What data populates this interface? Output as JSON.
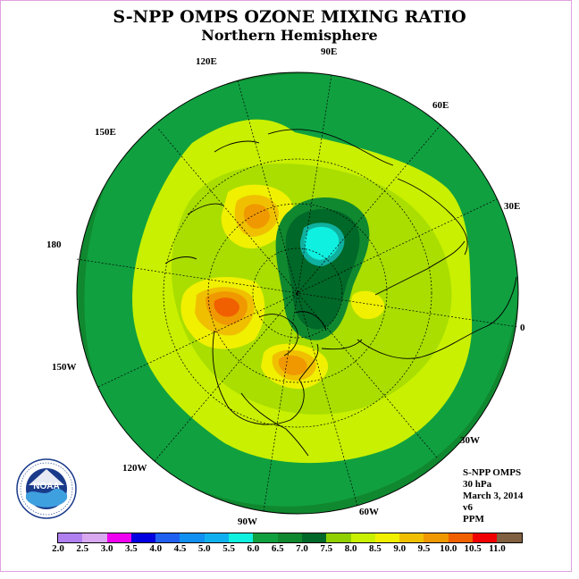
{
  "title": "S-NPP OMPS OZONE MIXING RATIO",
  "subtitle": "Northern Hemisphere",
  "longitude_labels": [
    {
      "text": "90E",
      "name": "lon-label-90e"
    },
    {
      "text": "60E",
      "name": "lon-label-60e"
    },
    {
      "text": "30E",
      "name": "lon-label-30e"
    },
    {
      "text": "0",
      "name": "lon-label-0"
    },
    {
      "text": "30W",
      "name": "lon-label-30w"
    },
    {
      "text": "60W",
      "name": "lon-label-60w"
    },
    {
      "text": "90W",
      "name": "lon-label-90w"
    },
    {
      "text": "120W",
      "name": "lon-label-120w"
    },
    {
      "text": "150W",
      "name": "lon-label-150w"
    },
    {
      "text": "180",
      "name": "lon-label-180"
    },
    {
      "text": "150E",
      "name": "lon-label-150e"
    },
    {
      "text": "120E",
      "name": "lon-label-120e"
    }
  ],
  "info": {
    "line1": "S-NPP OMPS",
    "line2": "30 hPa",
    "line3": "March 3, 2014",
    "line4": "v6",
    "line5": "PPM"
  },
  "colorbar": {
    "colors": [
      "#b080f0",
      "#d8a8f0",
      "#f000f0",
      "#0000e0",
      "#2060f0",
      "#1090f0",
      "#10b0f0",
      "#10f0e0",
      "#10a040",
      "#108830",
      "#006828",
      "#90d000",
      "#c8f000",
      "#f0f000",
      "#f0c000",
      "#f09800",
      "#f06000",
      "#f00000",
      "#806040"
    ],
    "ticks": [
      "2.0",
      "2.5",
      "3.0",
      "3.5",
      "4.0",
      "4.5",
      "5.0",
      "5.5",
      "6.0",
      "6.5",
      "7.0",
      "7.5",
      "8.0",
      "8.5",
      "9.0",
      "9.5",
      "10.0",
      "10.5",
      "11.0"
    ]
  },
  "logo_text": "NOAA",
  "field_colors": {
    "outer": "#108830",
    "mid_green": "#10a040",
    "light": "#c8f000",
    "yellow_green": "#90d000",
    "yellow": "#f0f000",
    "orange": "#f09800",
    "red_orange": "#f06000",
    "dark_green": "#006828",
    "cyan": "#10f0e0"
  }
}
